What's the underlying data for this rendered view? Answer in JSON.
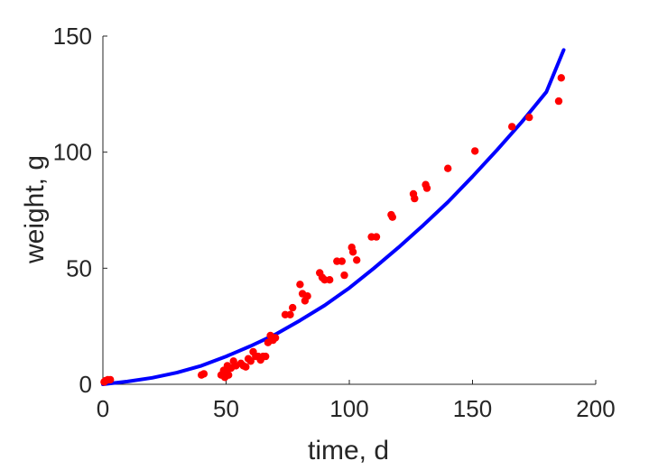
{
  "chart_data": {
    "type": "scatter",
    "title": "",
    "xlabel": "time, d",
    "ylabel": "weight, g",
    "xlim": [
      0,
      200
    ],
    "ylim": [
      0,
      150
    ],
    "xticks": [
      "0",
      "50",
      "100",
      "150",
      "200"
    ],
    "yticks": [
      "0",
      "50",
      "100",
      "150"
    ],
    "grid": false,
    "legend": "none",
    "series": [
      {
        "kind": "scatter",
        "color": "#ff0000",
        "points": [
          [
            0.5,
            1
          ],
          [
            1,
            1.5
          ],
          [
            2,
            2
          ],
          [
            3,
            2
          ],
          [
            40,
            4
          ],
          [
            41,
            4.5
          ],
          [
            48,
            4
          ],
          [
            49,
            6
          ],
          [
            49.5,
            3
          ],
          [
            50,
            5
          ],
          [
            50.5,
            8
          ],
          [
            51,
            4
          ],
          [
            52,
            7
          ],
          [
            53,
            10
          ],
          [
            54,
            8
          ],
          [
            56,
            9
          ],
          [
            57,
            8
          ],
          [
            58,
            7.5
          ],
          [
            59,
            11
          ],
          [
            60,
            10
          ],
          [
            61,
            14
          ],
          [
            62,
            12
          ],
          [
            63,
            12
          ],
          [
            64,
            10.5
          ],
          [
            65,
            12
          ],
          [
            66,
            12
          ],
          [
            67,
            18
          ],
          [
            68,
            21
          ],
          [
            69,
            19
          ],
          [
            70,
            20
          ],
          [
            74,
            30
          ],
          [
            76,
            30
          ],
          [
            77,
            33
          ],
          [
            80,
            43
          ],
          [
            81,
            39
          ],
          [
            82,
            36
          ],
          [
            83,
            38
          ],
          [
            88,
            48
          ],
          [
            89,
            46
          ],
          [
            90,
            45
          ],
          [
            92,
            45
          ],
          [
            95,
            53
          ],
          [
            97,
            53
          ],
          [
            98,
            47
          ],
          [
            101,
            59
          ],
          [
            101.5,
            57
          ],
          [
            103,
            53.5
          ],
          [
            109,
            63.5
          ],
          [
            111,
            63.5
          ],
          [
            117,
            73
          ],
          [
            117.5,
            72
          ],
          [
            126,
            82
          ],
          [
            126.5,
            80
          ],
          [
            131,
            86
          ],
          [
            131.5,
            84.5
          ],
          [
            140,
            93
          ],
          [
            151,
            100.5
          ],
          [
            166,
            111
          ],
          [
            173,
            115
          ],
          [
            185,
            122
          ],
          [
            186,
            132
          ]
        ]
      },
      {
        "kind": "line",
        "color": "#0000ff",
        "x": [
          0,
          10,
          20,
          30,
          40,
          50,
          60,
          70,
          80,
          90,
          100,
          110,
          120,
          130,
          140,
          150,
          160,
          170,
          180,
          187
        ],
        "y": [
          0,
          1.2,
          2.8,
          5,
          8,
          12,
          16.5,
          21.5,
          27.5,
          34,
          41.5,
          50,
          59,
          68.5,
          78.5,
          89.5,
          101,
          113,
          126,
          144
        ]
      }
    ]
  }
}
